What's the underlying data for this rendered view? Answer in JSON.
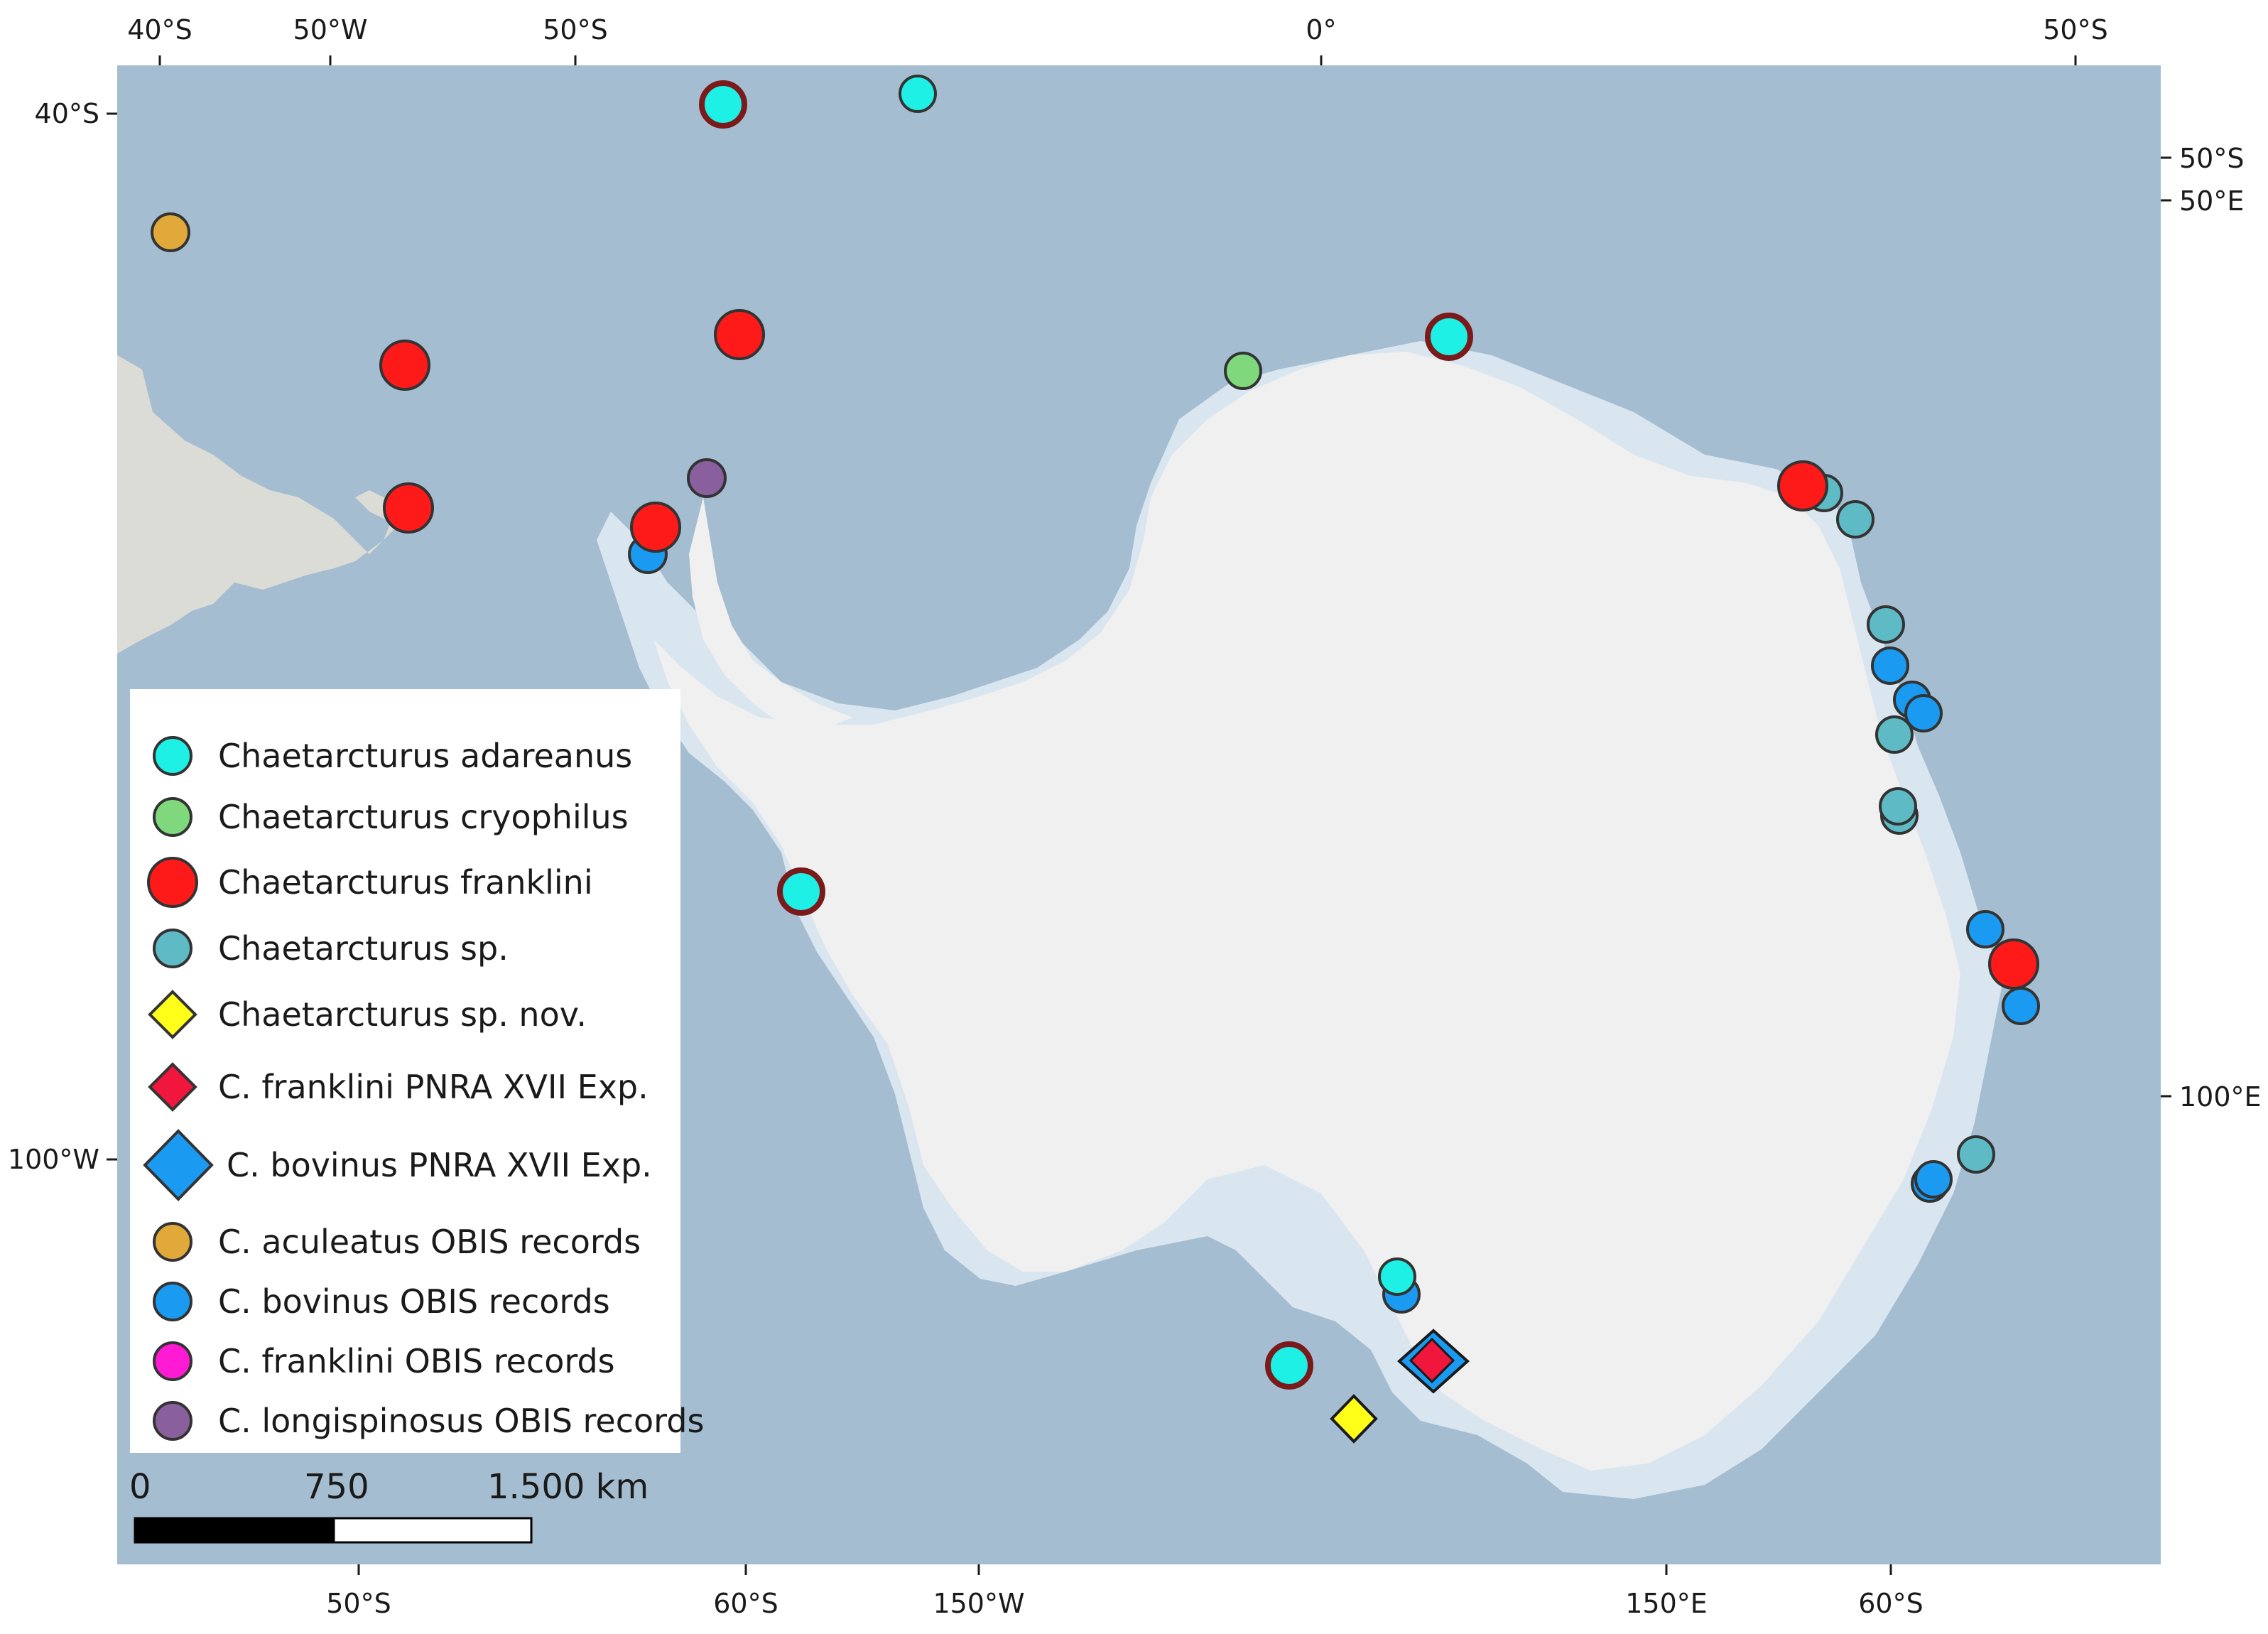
{
  "map": {
    "colors": {
      "ocean": "#a4bdd0",
      "land": "#dcdcd7",
      "ice_sheet": "#f0f0f0",
      "ice_shelf": "#d9e6ef"
    },
    "top_ticks": [
      "40°S",
      "50°W",
      "50°S",
      "0°",
      "50°S"
    ],
    "bottom_ticks": [
      "50°S",
      "60°S",
      "150°W",
      "150°E",
      "60°S"
    ],
    "left_ticks": [
      "40°S",
      "100°W"
    ],
    "right_ticks": [
      "50°S",
      "50°E",
      "100°E"
    ]
  },
  "legend": {
    "items": [
      {
        "label": "Chaetarcturus adareanus",
        "symbol": "circle",
        "color": "#1ef0e6"
      },
      {
        "label": "Chaetarcturus cryophilus",
        "symbol": "circle",
        "color": "#7fd97c"
      },
      {
        "label": "Chaetarcturus franklini",
        "symbol": "circle",
        "color": "#ff1a1a"
      },
      {
        "label": "Chaetarcturus sp.",
        "symbol": "circle",
        "color": "#5ebac4"
      },
      {
        "label": "Chaetarcturus sp. nov.",
        "symbol": "diamond",
        "color": "#ffff1a"
      },
      {
        "label": "C. franklini PNRA XVII Exp.",
        "symbol": "diamond",
        "color": "#f0163c"
      },
      {
        "label": "C. bovinus PNRA XVII Exp.",
        "symbol": "diamond",
        "color": "#1a9af0"
      },
      {
        "label": "C. aculeatus OBIS records",
        "symbol": "circle",
        "color": "#e0a93a"
      },
      {
        "label": "C. bovinus OBIS records",
        "symbol": "circle",
        "color": "#1a9af0"
      },
      {
        "label": "C. franklini OBIS records",
        "symbol": "circle",
        "color": "#ff1ad4"
      },
      {
        "label": "C. longispinosus OBIS records",
        "symbol": "circle",
        "color": "#8a5f9e"
      }
    ]
  },
  "scale_bar": {
    "labels": [
      "0",
      "750",
      "1.500 km"
    ]
  }
}
